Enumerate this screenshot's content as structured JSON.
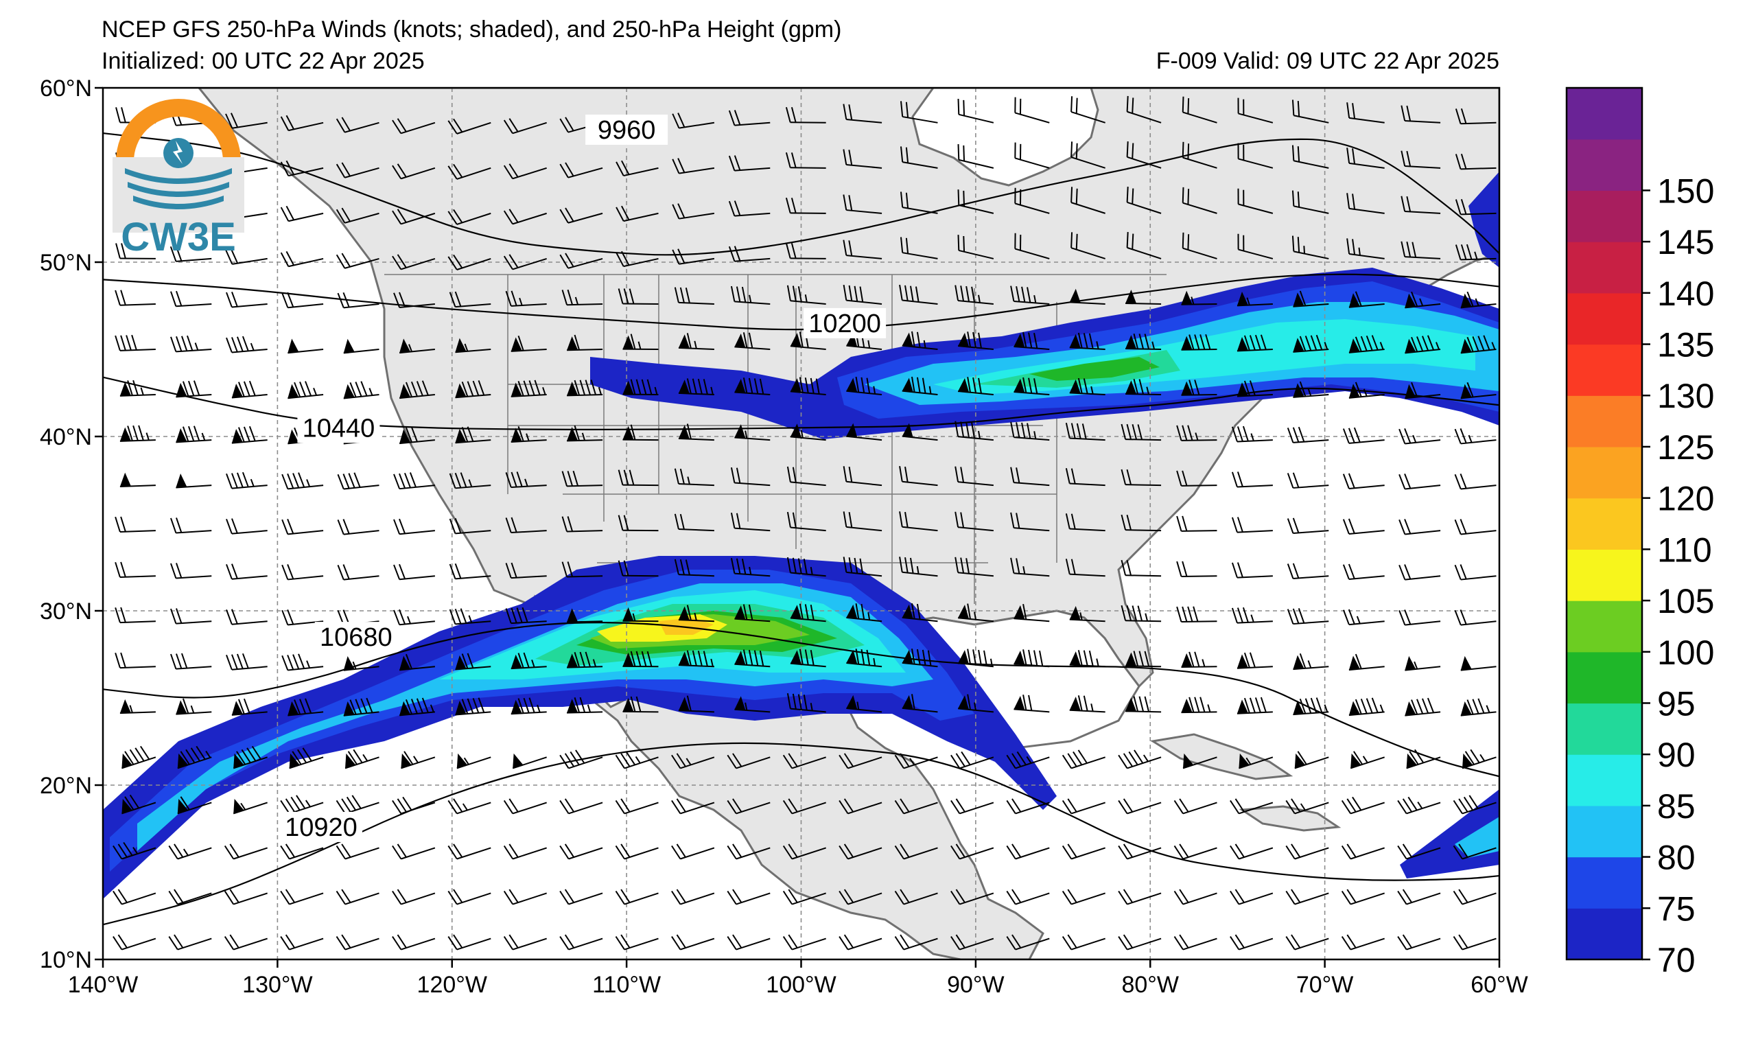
{
  "header": {
    "title": "NCEP GFS 250-hPa Winds (knots; shaded), and 250-hPa Height (gpm)",
    "initialized": "Initialized: 00 UTC 22 Apr 2025",
    "valid": "F-009  Valid: 09 UTC 22 Apr 2025"
  },
  "logo": {
    "text": "CW3E",
    "colors": {
      "orange": "#f7941d",
      "teal": "#2e87a8"
    }
  },
  "map": {
    "lon_range": [
      -140,
      -60
    ],
    "lat_range": [
      10,
      60
    ],
    "lon_ticks": [
      {
        "value": -140,
        "label": "140°W"
      },
      {
        "value": -130,
        "label": "130°W"
      },
      {
        "value": -120,
        "label": "120°W"
      },
      {
        "value": -110,
        "label": "110°W"
      },
      {
        "value": -100,
        "label": "100°W"
      },
      {
        "value": -90,
        "label": "90°W"
      },
      {
        "value": -80,
        "label": "80°W"
      },
      {
        "value": -70,
        "label": "70°W"
      },
      {
        "value": -60,
        "label": "60°W"
      }
    ],
    "lat_ticks": [
      {
        "value": 10,
        "label": "10°N"
      },
      {
        "value": 20,
        "label": "20°N"
      },
      {
        "value": 30,
        "label": "30°N"
      },
      {
        "value": 40,
        "label": "40°N"
      },
      {
        "value": 50,
        "label": "50°N"
      },
      {
        "value": 60,
        "label": "60°N"
      }
    ],
    "land_color": "#e6e6e6",
    "ocean_color": "#ffffff",
    "height_contours": [
      {
        "value": 9960,
        "label": "9960",
        "label_lon": -110.0,
        "label_lat": 57.6,
        "path": [
          [
            -140,
            57.4
          ],
          [
            -132,
            56.5
          ],
          [
            -124,
            53.5
          ],
          [
            -118,
            51.3
          ],
          [
            -112,
            50.6
          ],
          [
            -106,
            50.3
          ],
          [
            -98,
            51.5
          ],
          [
            -88,
            54.0
          ],
          [
            -80,
            55.6
          ],
          [
            -74,
            57.1
          ],
          [
            -68,
            57.0
          ],
          [
            -62,
            52.5
          ],
          [
            -60,
            50.5
          ]
        ]
      },
      {
        "value": 10200,
        "label": "10200",
        "label_lon": -97.5,
        "label_lat": 46.5,
        "path": [
          [
            -140,
            49.0
          ],
          [
            -132,
            48.5
          ],
          [
            -124,
            47.6
          ],
          [
            -116,
            47.0
          ],
          [
            -108,
            46.5
          ],
          [
            -100,
            46.0
          ],
          [
            -92,
            46.6
          ],
          [
            -84,
            47.8
          ],
          [
            -78,
            48.6
          ],
          [
            -72,
            49.3
          ],
          [
            -66,
            49.3
          ],
          [
            -60,
            48.6
          ]
        ]
      },
      {
        "value": 10440,
        "label": "10440",
        "label_lon": -126.5,
        "label_lat": 40.5,
        "path": [
          [
            -140,
            43.4
          ],
          [
            -134,
            42.0
          ],
          [
            -128,
            40.8
          ],
          [
            -122,
            40.5
          ],
          [
            -116,
            40.4
          ],
          [
            -108,
            40.4
          ],
          [
            -100,
            40.5
          ],
          [
            -92,
            40.6
          ],
          [
            -84,
            41.5
          ],
          [
            -78,
            41.9
          ],
          [
            -72,
            42.9
          ],
          [
            -66,
            42.5
          ],
          [
            -60,
            41.8
          ]
        ]
      },
      {
        "value": 10680,
        "label": "10680",
        "label_lon": -125.5,
        "label_lat": 28.5,
        "path": [
          [
            -140,
            25.5
          ],
          [
            -134,
            24.8
          ],
          [
            -128,
            26.0
          ],
          [
            -122,
            28.0
          ],
          [
            -116,
            29.2
          ],
          [
            -110,
            29.4
          ],
          [
            -104,
            28.8
          ],
          [
            -98,
            27.8
          ],
          [
            -92,
            27.0
          ],
          [
            -86,
            26.8
          ],
          [
            -80,
            26.8
          ],
          [
            -74,
            26.0
          ],
          [
            -70,
            24.0
          ],
          [
            -64,
            21.5
          ],
          [
            -60,
            20.5
          ]
        ]
      },
      {
        "value": 10920,
        "label": "10920",
        "label_lon": -127.5,
        "label_lat": 17.6,
        "path": [
          [
            -140,
            12.0
          ],
          [
            -134,
            13.5
          ],
          [
            -128,
            16.0
          ],
          [
            -122,
            18.8
          ],
          [
            -116,
            20.8
          ],
          [
            -110,
            22.0
          ],
          [
            -104,
            22.5
          ],
          [
            -98,
            22.2
          ],
          [
            -92,
            21.5
          ],
          [
            -86,
            19.0
          ],
          [
            -80,
            16.0
          ],
          [
            -74,
            15.0
          ],
          [
            -68,
            14.5
          ],
          [
            -62,
            14.6
          ],
          [
            -60,
            14.8
          ]
        ]
      }
    ]
  },
  "colorbar": {
    "levels": [
      {
        "value": 70,
        "color": "#1c25c6"
      },
      {
        "value": 75,
        "color": "#1e46e8"
      },
      {
        "value": 80,
        "color": "#22c2f5"
      },
      {
        "value": 85,
        "color": "#27ece8"
      },
      {
        "value": 90,
        "color": "#22d99a"
      },
      {
        "value": 95,
        "color": "#1fb729"
      },
      {
        "value": 100,
        "color": "#6ccd22"
      },
      {
        "value": 105,
        "color": "#f7f51c"
      },
      {
        "value": 110,
        "color": "#fbc71f"
      },
      {
        "value": 120,
        "color": "#fba321"
      },
      {
        "value": 125,
        "color": "#fb7d26"
      },
      {
        "value": 130,
        "color": "#fb3a24"
      },
      {
        "value": 135,
        "color": "#e92628"
      },
      {
        "value": 140,
        "color": "#c82044"
      },
      {
        "value": 145,
        "color": "#a81e5e"
      },
      {
        "value": 150,
        "color": "#8a2381"
      },
      {
        "value": 155,
        "color": "#6a2396"
      }
    ],
    "labels": [
      "70",
      "75",
      "80",
      "85",
      "90",
      "95",
      "100",
      "105",
      "110",
      "120",
      "125",
      "130",
      "135",
      "140",
      "145",
      "150"
    ]
  }
}
